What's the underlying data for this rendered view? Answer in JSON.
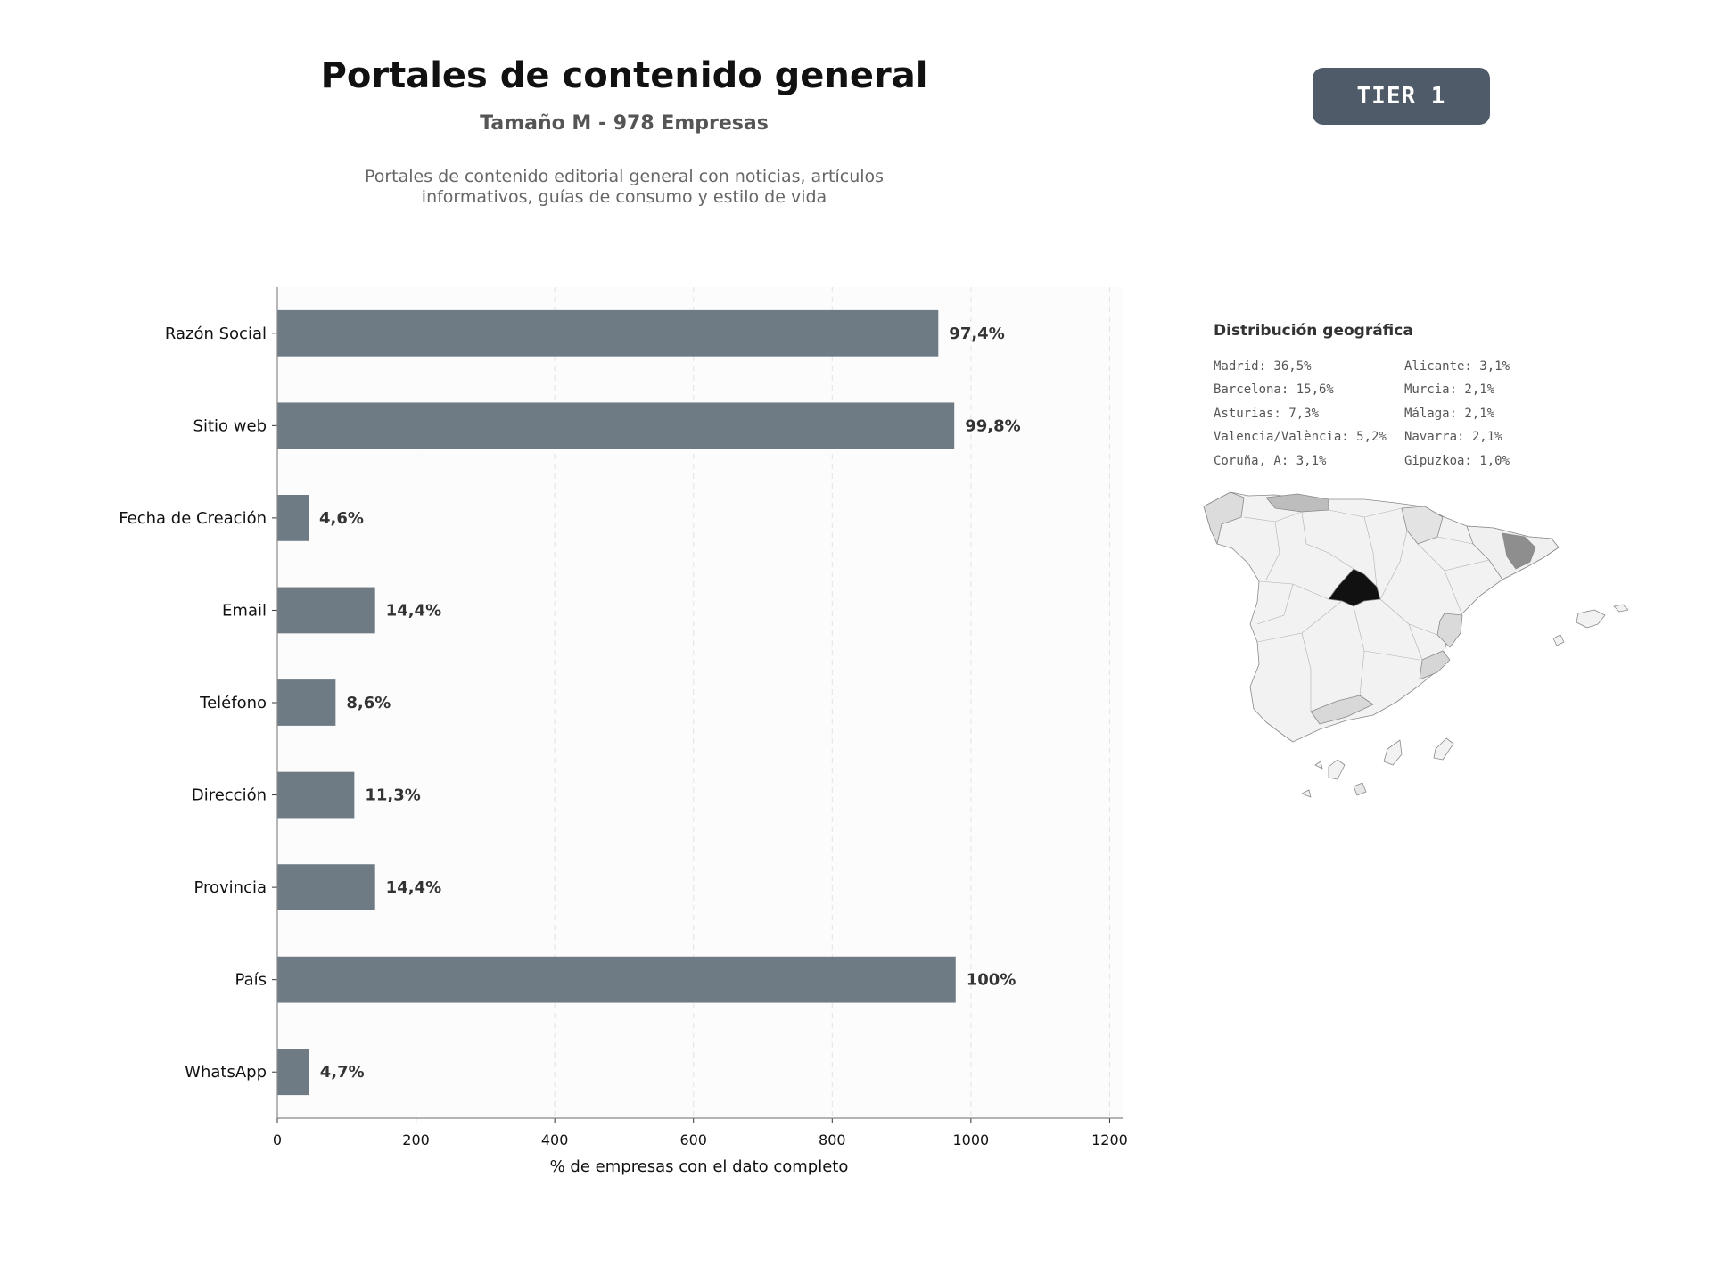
{
  "header": {
    "title": "Portales de contenido general",
    "subtitle": "Tamaño M - 978 Empresas",
    "description_line1": "Portales de contenido editorial general con noticias, artículos",
    "description_line2": "informativos, guías de consumo y estilo de vida",
    "badge": "TIER 1"
  },
  "chart_data": {
    "type": "bar",
    "orientation": "horizontal",
    "categories": [
      "Razón Social",
      "Sitio web",
      "Fecha de Creación",
      "Email",
      "Teléfono",
      "Dirección",
      "Provincia",
      "País",
      "WhatsApp"
    ],
    "values": [
      953,
      976,
      45,
      141,
      84,
      111,
      141,
      978,
      46
    ],
    "data_labels": [
      "97,4%",
      "99,8%",
      "4,6%",
      "14,4%",
      "8,6%",
      "11,3%",
      "14,4%",
      "100%",
      "4,7%"
    ],
    "xlabel": "% de empresas con el dato completo",
    "xlim": [
      0,
      1220
    ],
    "xticks": [
      0,
      200,
      400,
      600,
      800,
      1000,
      1200
    ],
    "grid": "vertical-dashed",
    "colors": {
      "bar": "#6e7a84",
      "background": "#fcfcfc",
      "grid": "#e2e2e2"
    }
  },
  "geo": {
    "title": "Distribución geográfica",
    "col1": [
      "Madrid: 36,5%",
      "Barcelona: 15,6%",
      "Asturias: 7,3%",
      "Valencia/València: 5,2%",
      "Coruña, A: 3,1%"
    ],
    "col2": [
      "Alicante: 3,1%",
      "Murcia: 2,1%",
      "Málaga: 2,1%",
      "Navarra: 2,1%",
      "Gipuzkoa: 1,0%"
    ]
  }
}
